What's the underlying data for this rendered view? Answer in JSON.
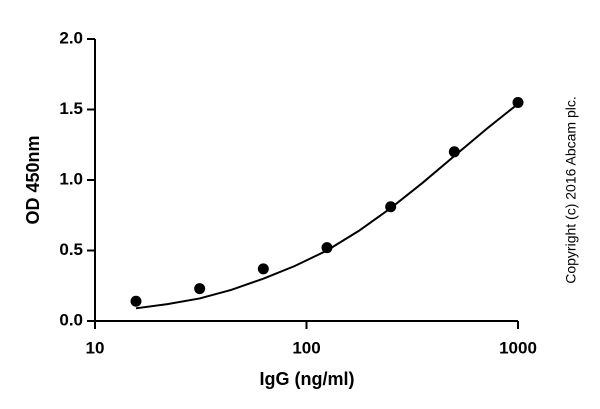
{
  "chart_data": {
    "type": "scatter",
    "x_label": "IgG (ng/ml)",
    "y_label": "OD 450nm",
    "annotation": "Copyright (c) 2016 Abcam plc.",
    "xscale": "log",
    "xlim": [
      10,
      1000
    ],
    "xticks": [
      10,
      100,
      1000
    ],
    "ylim": [
      0,
      2
    ],
    "yticks": [
      {
        "value": 0,
        "label": "0.0"
      },
      {
        "value": 0.5,
        "label": "0.5"
      },
      {
        "value": 1,
        "label": "1.0"
      },
      {
        "value": 1.5,
        "label": "1.5"
      },
      {
        "value": 2,
        "label": "2.0"
      }
    ],
    "series": [
      {
        "type": "scatter",
        "color": "#000000",
        "x": [
          15.625,
          31.25,
          62.5,
          125,
          250,
          500,
          1000
        ],
        "values": [
          0.14,
          0.23,
          0.37,
          0.52,
          0.81,
          1.2,
          1.55
        ]
      },
      {
        "type": "line",
        "color": "#000000",
        "x": [
          15.625,
          22,
          31.25,
          44,
          62.5,
          88,
          125,
          177,
          250,
          354,
          500,
          707,
          1000
        ],
        "values": [
          0.09,
          0.12,
          0.16,
          0.22,
          0.3,
          0.39,
          0.5,
          0.64,
          0.8,
          0.98,
          1.17,
          1.36,
          1.54
        ]
      }
    ]
  }
}
